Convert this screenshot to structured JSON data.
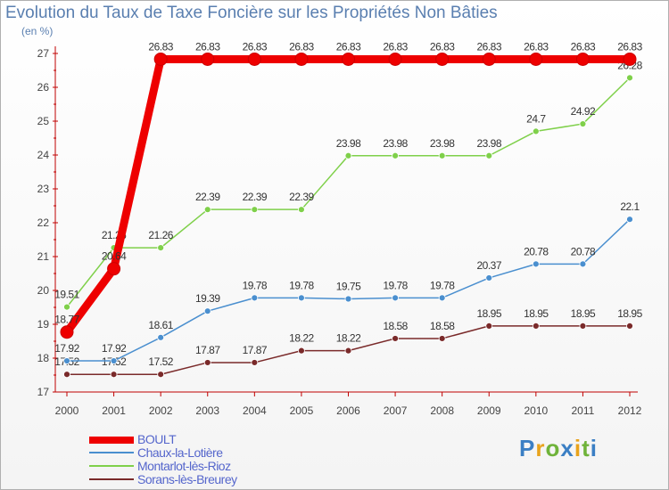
{
  "title": "Evolution du Taux de Taxe Foncière sur les Propriétés Non Bâties",
  "unit_label": "(en %)",
  "brand": "Proxiti",
  "chart_data": {
    "type": "line",
    "x": [
      "2000",
      "2001",
      "2002",
      "2003",
      "2004",
      "2005",
      "2006",
      "2007",
      "2008",
      "2009",
      "2010",
      "2011",
      "2012"
    ],
    "ylim": [
      17,
      27
    ],
    "yticks": [
      17,
      18,
      19,
      20,
      21,
      22,
      23,
      24,
      25,
      26,
      27
    ],
    "grid": false,
    "legend_position": "bottom-left",
    "series": [
      {
        "name": "Sorans-lès-Breurey",
        "color": "#7a2a2a",
        "values": [
          17.52,
          17.52,
          17.52,
          17.87,
          17.87,
          18.22,
          18.22,
          18.58,
          18.58,
          18.95,
          18.95,
          18.95,
          18.95
        ],
        "labels": [
          "17.52",
          "17.52",
          "17.52",
          "17.87",
          "17.87",
          "18.22",
          "18.22",
          "18.58",
          "18.58",
          "18.95",
          "18.95",
          "18.95",
          "18.95"
        ]
      },
      {
        "name": "Chaux-la-Lotière",
        "color": "#4a8fcf",
        "values": [
          17.92,
          17.92,
          18.61,
          19.39,
          19.78,
          19.78,
          19.75,
          19.78,
          19.78,
          20.37,
          20.78,
          20.78,
          22.1
        ],
        "labels": [
          "17.92",
          "17.92",
          "18.61",
          "19.39",
          "19.78",
          "19.78",
          "19.75",
          "19.78",
          "19.78",
          "20.37",
          "20.78",
          "20.78",
          "22.1"
        ]
      },
      {
        "name": "Montarlot-lès-Rioz",
        "color": "#7fd04a",
        "values": [
          19.51,
          21.26,
          21.26,
          22.39,
          22.39,
          22.39,
          23.98,
          23.98,
          23.98,
          23.98,
          24.7,
          24.92,
          26.28
        ],
        "labels": [
          "19.51",
          "21.26",
          "21.26",
          "22.39",
          "22.39",
          "22.39",
          "23.98",
          "23.98",
          "23.98",
          "23.98",
          "24.7",
          "24.92",
          "26.28"
        ]
      },
      {
        "name": "BOULT",
        "color": "#ee0000",
        "values": [
          18.77,
          20.64,
          26.83,
          26.83,
          26.83,
          26.83,
          26.83,
          26.83,
          26.83,
          26.83,
          26.83,
          26.83,
          26.83
        ],
        "labels": [
          "18.77",
          "20.64",
          "26.83",
          "26.83",
          "26.83",
          "26.83",
          "26.83",
          "26.83",
          "26.83",
          "26.83",
          "26.83",
          "26.83",
          "26.83"
        ]
      }
    ],
    "legend_order": [
      "BOULT",
      "Chaux-la-Lotière",
      "Montarlot-lès-Rioz",
      "Sorans-lès-Breurey"
    ]
  }
}
